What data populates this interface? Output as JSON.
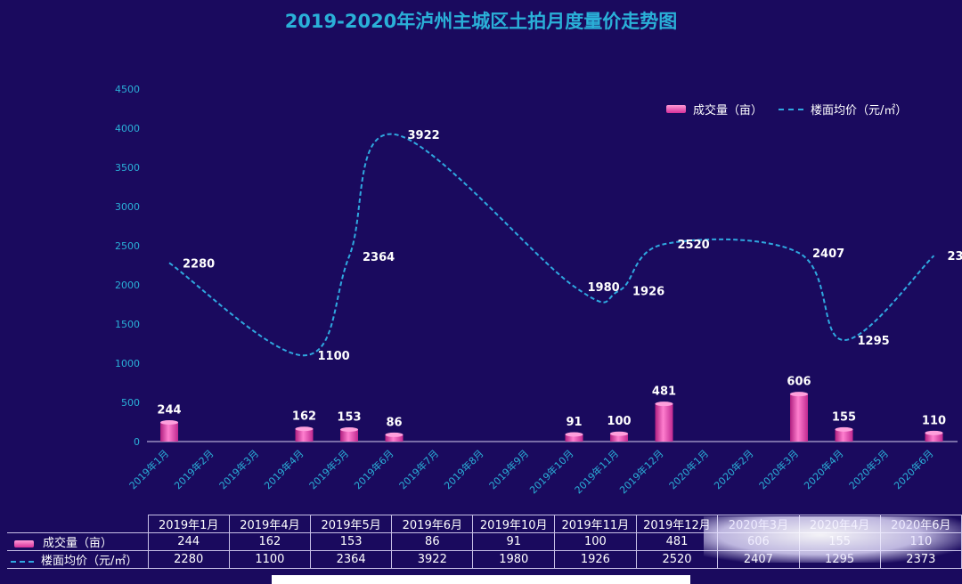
{
  "title": "2019-2020年泸州主城区土拍月度量价走势图",
  "legend": {
    "bar_label": "成交量（亩）",
    "line_label": "楼面均价（元/㎡）"
  },
  "colors": {
    "background": "#1a0a5e",
    "title": "#2ab0d8",
    "axis_text": "#2ab0d8",
    "line": "#2fa8e0",
    "bar": "#e03aa8",
    "label": "#ffffff"
  },
  "chart_data": {
    "type": "bar",
    "categories": [
      "2019年1月",
      "2019年2月",
      "2019年3月",
      "2019年4月",
      "2019年5月",
      "2019年6月",
      "2019年7月",
      "2019年8月",
      "2019年9月",
      "2019年10月",
      "2019年11月",
      "2019年12月",
      "2020年1月",
      "2020年2月",
      "2020年3月",
      "2020年4月",
      "2020年5月",
      "2020年6月"
    ],
    "series": [
      {
        "name": "成交量（亩）",
        "kind": "bar",
        "values": [
          244,
          null,
          null,
          162,
          153,
          86,
          null,
          null,
          null,
          91,
          100,
          481,
          null,
          null,
          606,
          155,
          null,
          110
        ]
      },
      {
        "name": "楼面均价（元/㎡）",
        "kind": "line",
        "style": "dashed",
        "values": [
          2280,
          null,
          null,
          1100,
          2364,
          3922,
          null,
          null,
          null,
          1980,
          1926,
          2520,
          null,
          null,
          2407,
          1295,
          null,
          2373
        ]
      }
    ],
    "yticks": [
      0,
      500,
      1000,
      1500,
      2000,
      2500,
      3000,
      3500,
      4000,
      4500
    ],
    "ylim": [
      0,
      4500
    ],
    "legend_position": "top-right"
  },
  "table": {
    "columns": [
      "2019年1月",
      "2019年4月",
      "2019年5月",
      "2019年6月",
      "2019年10月",
      "2019年11月",
      "2019年12月",
      "2020年3月",
      "2020年4月",
      "2020年6月"
    ],
    "rows": [
      {
        "label": "成交量（亩）",
        "values": [
          "244",
          "162",
          "153",
          "86",
          "91",
          "100",
          "481",
          "606",
          "155",
          "110"
        ]
      },
      {
        "label": "楼面均价（元/㎡）",
        "values": [
          "2280",
          "1100",
          "2364",
          "3922",
          "1980",
          "1926",
          "2520",
          "2407",
          "1295",
          "2373"
        ]
      }
    ]
  }
}
